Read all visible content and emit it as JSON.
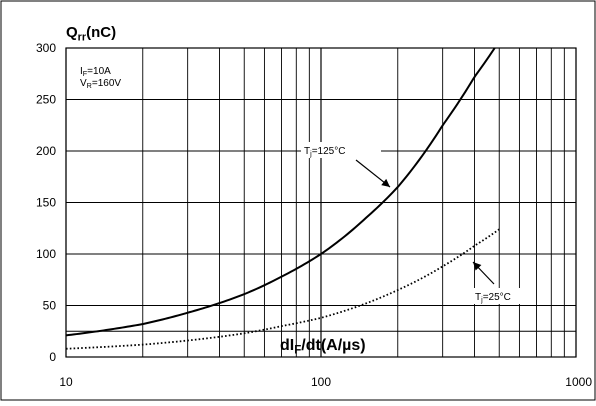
{
  "chart_data": {
    "type": "line",
    "y_title": {
      "main": "Q",
      "sub": "rr",
      "rest": "(nC)"
    },
    "x_title": {
      "main": "dI",
      "sub": "F",
      "rest": "/dt(A/µs)"
    },
    "conditions": [
      {
        "main": "I",
        "sub": "F",
        "rest": "=10A"
      },
      {
        "main": "V",
        "sub": "R",
        "rest": "=160V"
      }
    ],
    "x_scale": "log",
    "xlim": [
      10,
      1000
    ],
    "ylim": [
      0,
      300
    ],
    "x_ticks": [
      10,
      100,
      1000
    ],
    "x_tick_labels": [
      "10",
      "100",
      "1000"
    ],
    "y_ticks": [
      0,
      50,
      100,
      150,
      200,
      250,
      300
    ],
    "y_tick_labels": [
      "0",
      "50",
      "100",
      "150",
      "200",
      "250",
      "300"
    ],
    "grid": true,
    "series": [
      {
        "id": "tj125",
        "label": {
          "main": "T",
          "sub": "j",
          "rest": "=125°C"
        },
        "style": "solid",
        "x": [
          10,
          20,
          30,
          50,
          70,
          100,
          150,
          200,
          300,
          400,
          480
        ],
        "y": [
          21,
          32,
          43,
          61,
          78,
          100,
          135,
          165,
          225,
          272,
          300
        ]
      },
      {
        "id": "tj25",
        "label": {
          "main": "T",
          "sub": "j",
          "rest": "=25°C"
        },
        "style": "dotted",
        "x": [
          10,
          20,
          30,
          50,
          70,
          100,
          150,
          200,
          300,
          400,
          500
        ],
        "y": [
          8,
          12,
          16,
          23,
          30,
          38,
          52,
          65,
          88,
          108,
          124
        ]
      }
    ]
  },
  "colors": {
    "line": "#000000",
    "grid": "#000000",
    "border": "#000000",
    "background": "#ffffff"
  }
}
